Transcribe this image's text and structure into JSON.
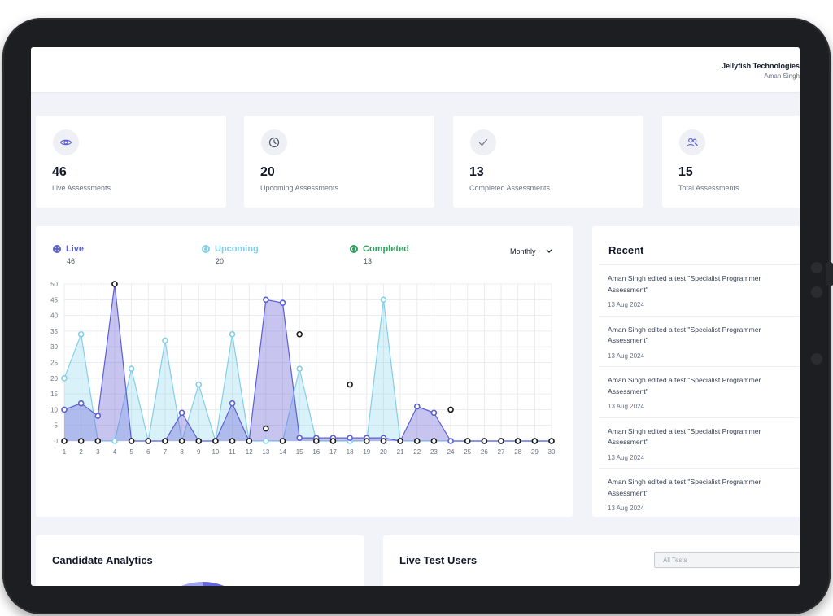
{
  "colors": {
    "live": "#5b5fd6",
    "upcoming": "#82cfe8",
    "completed": "#2f9e5f",
    "accent": "#6366f1"
  },
  "header": {
    "org_name": "Jellyfish Technologies",
    "user_name": "Aman Singh"
  },
  "stats": [
    {
      "value": "46",
      "label": "Live Assessments",
      "icon": "eye-icon"
    },
    {
      "value": "20",
      "label": "Upcoming Assessments",
      "icon": "clock-icon"
    },
    {
      "value": "13",
      "label": "Completed Assessments",
      "icon": "check-icon"
    },
    {
      "value": "15",
      "label": "Total Assessments",
      "icon": "users-icon"
    }
  ],
  "legend": {
    "live": {
      "label": "Live",
      "count": "46"
    },
    "upcoming": {
      "label": "Upcoming",
      "count": "20"
    },
    "completed": {
      "label": "Completed",
      "count": "13"
    }
  },
  "period_select": {
    "value": "Monthly"
  },
  "chart_data": {
    "type": "area",
    "title": "",
    "xlabel": "",
    "ylabel": "",
    "x": [
      1,
      2,
      3,
      4,
      5,
      6,
      7,
      8,
      9,
      10,
      11,
      12,
      13,
      14,
      15,
      16,
      17,
      18,
      19,
      20,
      21,
      22,
      23,
      24,
      25,
      26,
      27,
      28,
      29,
      30
    ],
    "ylim": [
      0,
      50
    ],
    "yticks": [
      0,
      5,
      10,
      15,
      20,
      25,
      30,
      35,
      40,
      45,
      50
    ],
    "grid": true,
    "series": [
      {
        "name": "Upcoming",
        "color": "#82cfe8",
        "values": [
          20,
          34,
          0,
          0,
          23,
          0,
          32,
          0,
          18,
          0,
          34,
          0,
          0,
          0,
          23,
          0,
          0,
          0,
          0,
          45,
          0,
          0,
          0,
          0,
          0,
          0,
          0,
          0,
          0,
          0
        ]
      },
      {
        "name": "Live",
        "color": "#5b5fd6",
        "values": [
          10,
          12,
          8,
          50,
          0,
          0,
          0,
          9,
          0,
          0,
          12,
          0,
          45,
          44,
          1,
          1,
          1,
          1,
          1,
          1,
          0,
          11,
          9,
          0,
          0,
          0,
          0,
          0,
          0,
          0
        ]
      },
      {
        "name": "Completed",
        "color": "#1a1a1a",
        "values": [
          0,
          0,
          0,
          50,
          0,
          0,
          0,
          0,
          0,
          0,
          0,
          0,
          4,
          0,
          34,
          0,
          0,
          18,
          0,
          0,
          0,
          0,
          0,
          10,
          0,
          0,
          0,
          0,
          0,
          0
        ]
      }
    ]
  },
  "recent": {
    "title": "Recent",
    "items": [
      {
        "text": "Aman Singh edited a test \"Specialist Programmer Assessment\"",
        "date": "13 Aug 2024"
      },
      {
        "text": "Aman Singh edited a test \"Specialist Programmer Assessment\"",
        "date": "13 Aug 2024"
      },
      {
        "text": "Aman Singh edited a test \"Specialist Programmer Assessment\"",
        "date": "13 Aug 2024"
      },
      {
        "text": "Aman Singh edited a test \"Specialist Programmer Assessment\"",
        "date": "13 Aug 2024"
      },
      {
        "text": "Aman Singh edited a test \"Specialist Programmer Assessment\"",
        "date": "13 Aug 2024"
      }
    ]
  },
  "candidate_analytics": {
    "title": "Candidate Analytics"
  },
  "live_test_users": {
    "title": "Live Test Users",
    "filter_value": "All Tests"
  }
}
